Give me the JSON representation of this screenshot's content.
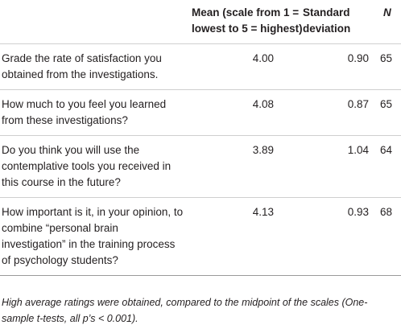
{
  "table": {
    "headers": {
      "question": "",
      "mean_line1": "Mean (scale from 1 =",
      "mean_line2": "lowest to 5 = highest)",
      "sd_line1": "Standard",
      "sd_line2": "deviation",
      "n": "N"
    },
    "rows": [
      {
        "question": "Grade the rate of satisfaction you obtained from the investigations.",
        "mean": "4.00",
        "sd": "0.90",
        "n": "65"
      },
      {
        "question": "How much to you feel you learned from these investigations?",
        "mean": "4.08",
        "sd": "0.87",
        "n": "65"
      },
      {
        "question": "Do you think you will use the contemplative tools you received in this course in the future?",
        "mean": "3.89",
        "sd": "1.04",
        "n": "64"
      },
      {
        "question": "How important is it, in your opinion, to combine “personal brain investigation” in the training process of psychology students?",
        "mean": "4.13",
        "sd": "0.93",
        "n": "68"
      }
    ]
  },
  "footnote": "High average ratings were obtained, compared to the midpoint of the scales (One-sample t-tests, all p’s < 0.001)."
}
